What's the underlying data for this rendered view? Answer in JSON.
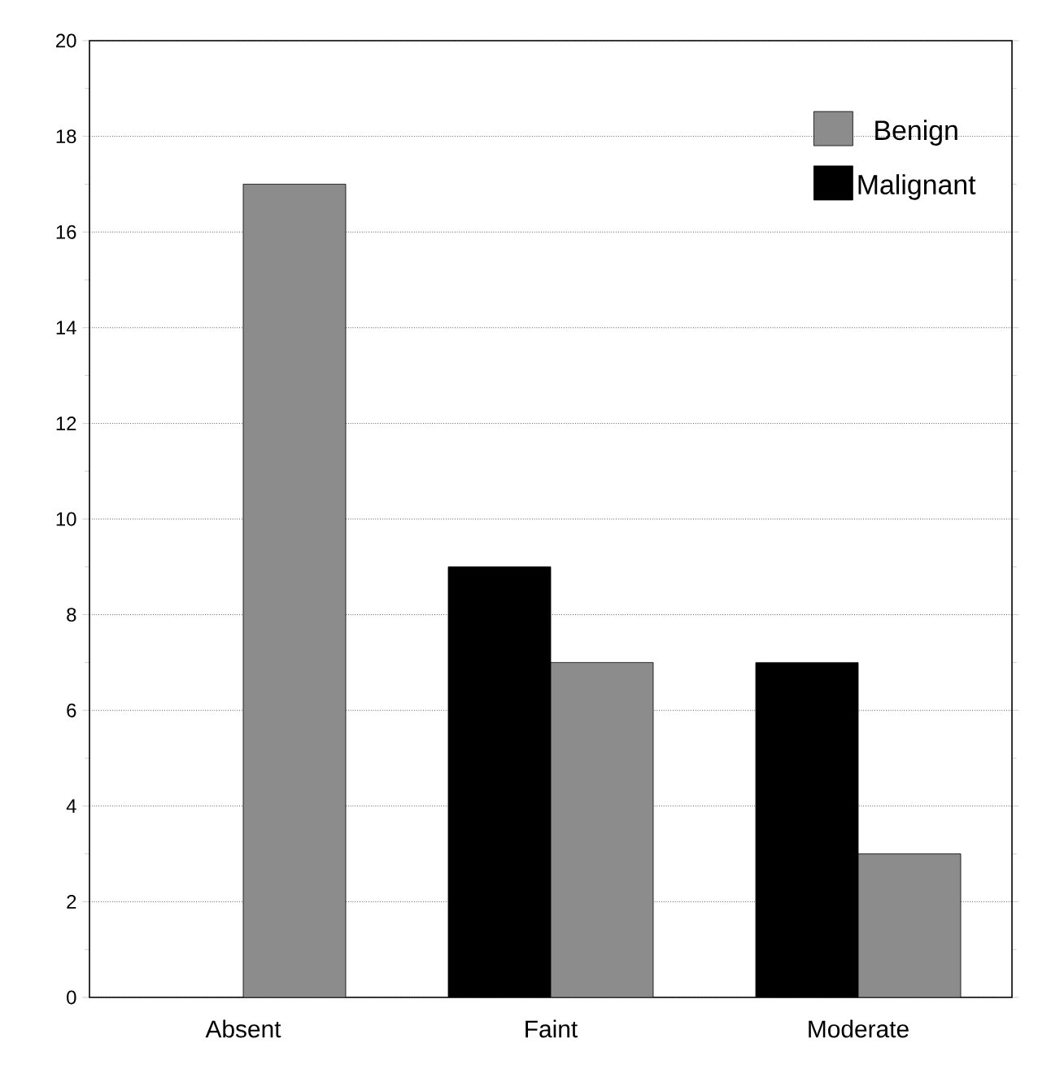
{
  "chart_data": {
    "type": "bar",
    "categories": [
      "Absent",
      "Faint",
      "Moderate"
    ],
    "series": [
      {
        "name": "Malignant",
        "color": "#000000",
        "values": [
          null,
          9,
          7
        ]
      },
      {
        "name": "Benign",
        "color": "#8c8c8c",
        "values": [
          17,
          7,
          3
        ]
      }
    ],
    "ylim": [
      0,
      20
    ],
    "yticks": [
      0,
      2,
      4,
      6,
      8,
      10,
      12,
      14,
      16,
      18,
      20
    ],
    "grid": "y",
    "legend": "top right"
  }
}
